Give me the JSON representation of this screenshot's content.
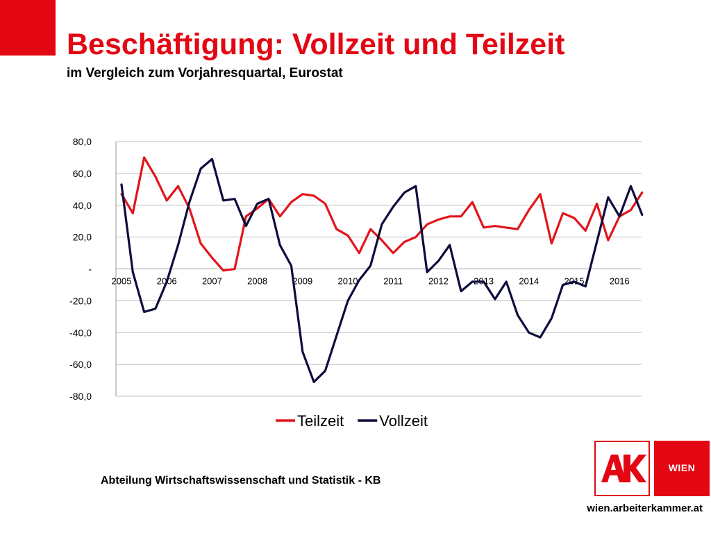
{
  "slide": {
    "title": "Beschäftigung: Vollzeit und Teilzeit",
    "subtitle": "im Vergleich zum Vorjahresquartal, Eurostat"
  },
  "footer": {
    "department": "Abteilung Wirtschaftswissenschaft und Statistik - KB",
    "website": "wien.arbeiterkammer.at",
    "logo_ak_text": "AK",
    "logo_wien_text": "WIEN"
  },
  "colors": {
    "brand_red": "#e30613",
    "teilzeit": "#e3141b",
    "vollzeit": "#0d0d3d"
  },
  "chart_data": {
    "type": "line",
    "title": "",
    "xlabel": "",
    "ylabel": "",
    "ylim": [
      -80,
      80
    ],
    "y_ticks": [
      80,
      60,
      40,
      20,
      0,
      -20,
      -40,
      -60,
      -80
    ],
    "y_tick_labels": [
      "80,0",
      "60,0",
      "40,0",
      "20,0",
      "-",
      "-20,0",
      "-40,0",
      "-60,0",
      "-80,0"
    ],
    "x_tick_labels": [
      "2005",
      "2006",
      "2007",
      "2008",
      "2009",
      "2010",
      "2011",
      "2012",
      "2013",
      "2014",
      "2015",
      "2016"
    ],
    "points_per_year": 4,
    "legend_position": "bottom",
    "grid": true,
    "series": [
      {
        "name": "Teilzeit",
        "color": "#e3141b",
        "values": [
          47,
          35,
          70,
          58,
          43,
          52,
          38,
          16,
          7,
          -1,
          0,
          33,
          38,
          44,
          33,
          42,
          47,
          46,
          41,
          25,
          21,
          10,
          25,
          18,
          10,
          17,
          20,
          28,
          31,
          33,
          33,
          42,
          26,
          27,
          26,
          25,
          37,
          47,
          16,
          35,
          32,
          24,
          41,
          18,
          33,
          37,
          48
        ]
      },
      {
        "name": "Vollzeit",
        "color": "#0d0d3d",
        "values": [
          53,
          -2,
          -27,
          -25,
          -8,
          15,
          42,
          63,
          69,
          43,
          44,
          27,
          41,
          44,
          15,
          2,
          -52,
          -71,
          -64,
          -42,
          -20,
          -7,
          2,
          28,
          39,
          48,
          52,
          -2,
          5,
          15,
          -14,
          -8,
          -8,
          -19,
          -8,
          -29,
          -40,
          -43,
          -31,
          -10,
          -8,
          -11,
          17,
          45,
          33,
          52,
          34
        ]
      }
    ]
  }
}
